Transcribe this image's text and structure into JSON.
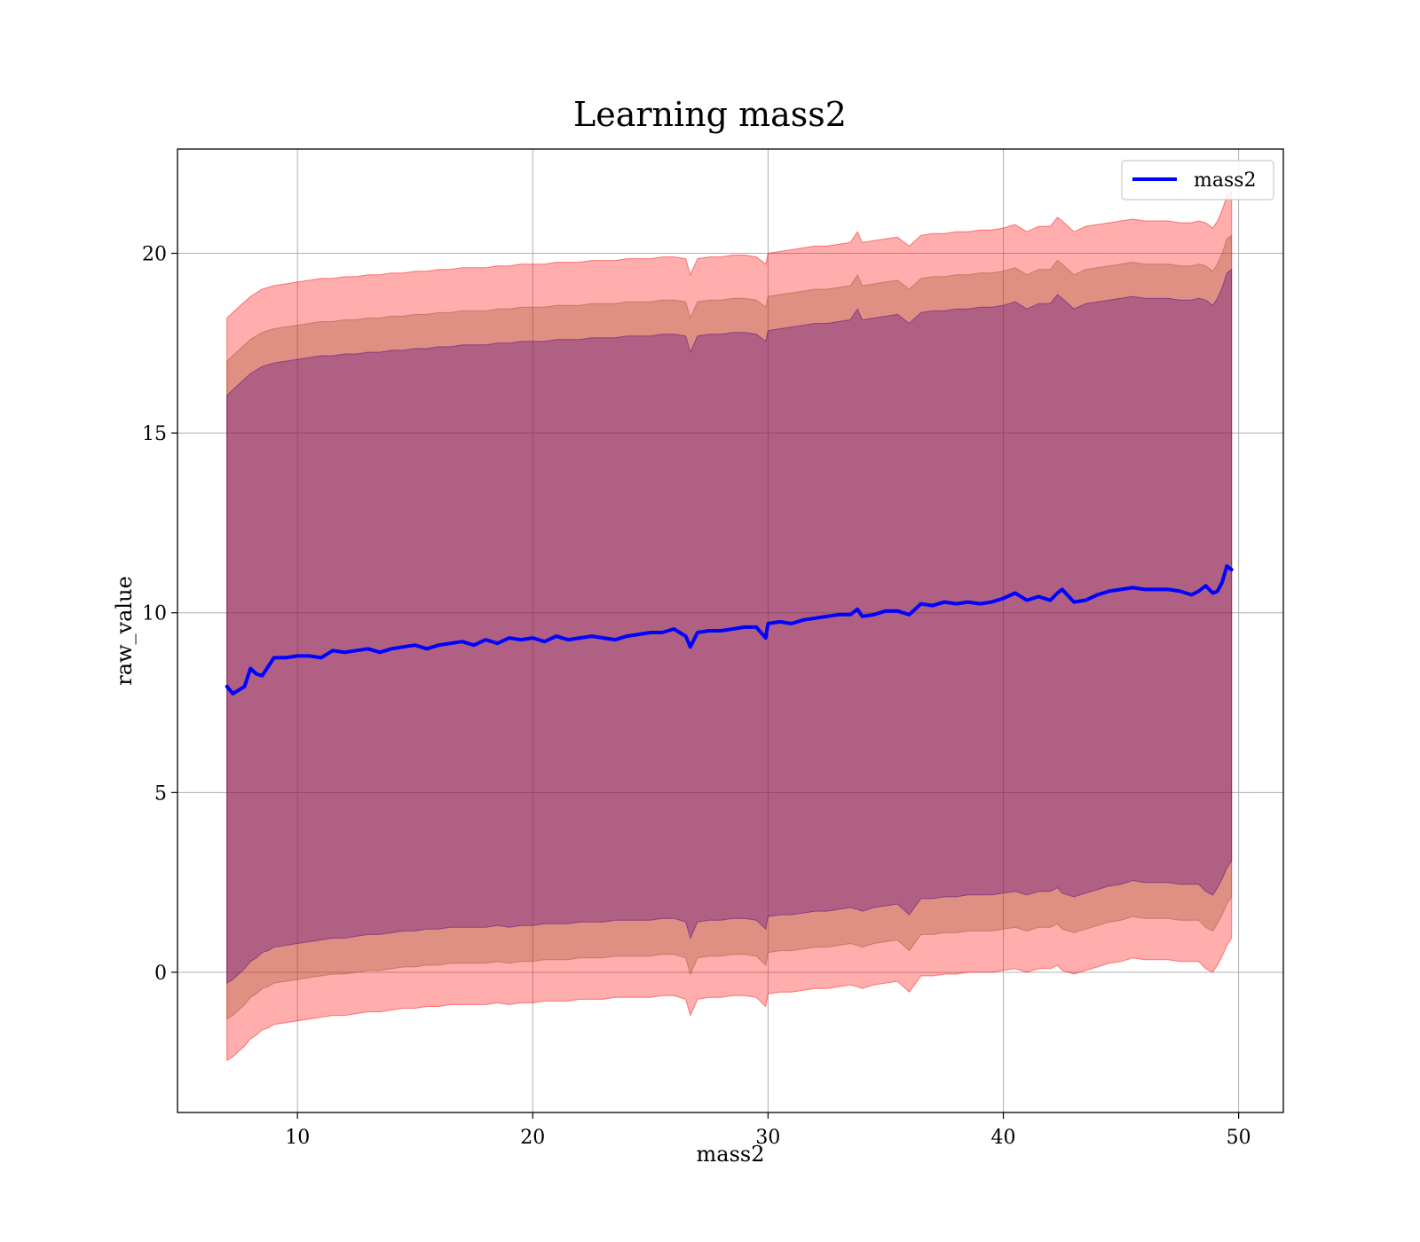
{
  "chart_data": {
    "type": "area",
    "title": "Learning mass2",
    "xlabel": "mass2",
    "ylabel": "raw_value",
    "xlim": [
      4.9,
      51.9
    ],
    "ylim": [
      -3.9,
      22.9
    ],
    "xticks": [
      10,
      20,
      30,
      40,
      50
    ],
    "yticks": [
      0,
      5,
      10,
      15,
      20
    ],
    "grid": true,
    "legend": {
      "placement": "upper right",
      "entries": [
        "mass2"
      ]
    },
    "colors": {
      "line": "#0000ff",
      "band_outer": "#ff0000",
      "band_middle": "#a0522d",
      "band_inner": "#4b0082",
      "grid": "#b0b0b0"
    },
    "band_alphas": {
      "outer": 0.32,
      "middle": 0.32,
      "inner": 0.32
    },
    "x": [
      7.0,
      7.25,
      7.5,
      7.75,
      8.0,
      8.25,
      8.5,
      8.75,
      9.0,
      9.5,
      10.0,
      10.5,
      11.0,
      11.5,
      12.0,
      12.5,
      13.0,
      13.5,
      14.0,
      14.5,
      15.0,
      15.5,
      16.0,
      16.5,
      17.0,
      17.5,
      18.0,
      18.5,
      19.0,
      19.5,
      20.0,
      20.5,
      21.0,
      21.5,
      22.0,
      22.5,
      23.0,
      23.5,
      24.0,
      24.5,
      25.0,
      25.5,
      26.0,
      26.5,
      26.7,
      27.0,
      27.5,
      28.0,
      28.5,
      29.0,
      29.5,
      29.9,
      30.0,
      30.5,
      31.0,
      31.5,
      32.0,
      32.5,
      33.0,
      33.5,
      33.8,
      34.0,
      34.5,
      35.0,
      35.5,
      36.0,
      36.5,
      37.0,
      37.5,
      38.0,
      38.5,
      39.0,
      39.5,
      40.0,
      40.5,
      41.0,
      41.5,
      42.0,
      42.3,
      42.5,
      43.0,
      43.5,
      44.0,
      44.5,
      45.0,
      45.5,
      46.0,
      46.5,
      47.0,
      47.5,
      48.0,
      48.3,
      48.6,
      48.9,
      49.1,
      49.3,
      49.5,
      49.7
    ],
    "series": [
      {
        "name": "mass2",
        "values": [
          7.95,
          7.75,
          7.85,
          7.95,
          8.45,
          8.3,
          8.25,
          8.5,
          8.75,
          8.75,
          8.8,
          8.8,
          8.75,
          8.95,
          8.9,
          8.95,
          9.0,
          8.9,
          9.0,
          9.05,
          9.1,
          9.0,
          9.1,
          9.15,
          9.2,
          9.1,
          9.25,
          9.15,
          9.3,
          9.25,
          9.3,
          9.2,
          9.35,
          9.25,
          9.3,
          9.35,
          9.3,
          9.25,
          9.35,
          9.4,
          9.45,
          9.45,
          9.55,
          9.35,
          9.05,
          9.45,
          9.5,
          9.5,
          9.55,
          9.6,
          9.6,
          9.3,
          9.7,
          9.75,
          9.7,
          9.8,
          9.85,
          9.9,
          9.95,
          9.95,
          10.1,
          9.9,
          9.95,
          10.05,
          10.05,
          9.95,
          10.25,
          10.2,
          10.3,
          10.25,
          10.3,
          10.25,
          10.3,
          10.4,
          10.55,
          10.35,
          10.45,
          10.35,
          10.55,
          10.65,
          10.3,
          10.35,
          10.5,
          10.6,
          10.65,
          10.7,
          10.65,
          10.65,
          10.65,
          10.6,
          10.5,
          10.6,
          10.75,
          10.55,
          10.6,
          10.85,
          11.3,
          11.2
        ]
      }
    ],
    "bands": [
      {
        "lower": [
          -2.45,
          -2.35,
          -2.2,
          -2.05,
          -1.85,
          -1.75,
          -1.6,
          -1.55,
          -1.45,
          -1.4,
          -1.35,
          -1.3,
          -1.25,
          -1.2,
          -1.2,
          -1.15,
          -1.1,
          -1.1,
          -1.05,
          -1.0,
          -1.0,
          -0.95,
          -0.95,
          -0.9,
          -0.9,
          -0.9,
          -0.9,
          -0.85,
          -0.9,
          -0.85,
          -0.85,
          -0.8,
          -0.8,
          -0.8,
          -0.75,
          -0.75,
          -0.75,
          -0.7,
          -0.7,
          -0.7,
          -0.7,
          -0.65,
          -0.65,
          -0.75,
          -1.2,
          -0.75,
          -0.7,
          -0.7,
          -0.65,
          -0.65,
          -0.7,
          -0.95,
          -0.6,
          -0.55,
          -0.55,
          -0.5,
          -0.45,
          -0.45,
          -0.4,
          -0.35,
          -0.4,
          -0.45,
          -0.35,
          -0.3,
          -0.25,
          -0.55,
          -0.1,
          -0.1,
          -0.05,
          -0.05,
          0.0,
          0.0,
          0.0,
          0.05,
          0.1,
          0.0,
          0.1,
          0.1,
          0.2,
          0.05,
          -0.05,
          0.05,
          0.15,
          0.25,
          0.3,
          0.4,
          0.35,
          0.35,
          0.35,
          0.3,
          0.3,
          0.3,
          0.1,
          0.0,
          0.2,
          0.45,
          0.75,
          0.95
        ]
      },
      {
        "lower": [
          -1.3,
          -1.2,
          -1.05,
          -0.9,
          -0.7,
          -0.6,
          -0.45,
          -0.4,
          -0.3,
          -0.25,
          -0.2,
          -0.15,
          -0.1,
          -0.05,
          -0.05,
          0.0,
          0.05,
          0.05,
          0.1,
          0.15,
          0.15,
          0.2,
          0.2,
          0.25,
          0.25,
          0.25,
          0.25,
          0.3,
          0.25,
          0.3,
          0.3,
          0.35,
          0.35,
          0.35,
          0.4,
          0.4,
          0.4,
          0.45,
          0.45,
          0.45,
          0.45,
          0.5,
          0.5,
          0.4,
          -0.05,
          0.4,
          0.45,
          0.45,
          0.5,
          0.5,
          0.45,
          0.2,
          0.55,
          0.6,
          0.6,
          0.65,
          0.7,
          0.7,
          0.75,
          0.8,
          0.75,
          0.7,
          0.8,
          0.85,
          0.9,
          0.6,
          1.05,
          1.05,
          1.1,
          1.1,
          1.15,
          1.15,
          1.15,
          1.2,
          1.25,
          1.15,
          1.25,
          1.25,
          1.35,
          1.2,
          1.1,
          1.2,
          1.3,
          1.4,
          1.45,
          1.55,
          1.5,
          1.5,
          1.5,
          1.45,
          1.45,
          1.45,
          1.25,
          1.15,
          1.35,
          1.6,
          1.9,
          2.1
        ]
      },
      {
        "lower": [
          -0.3,
          -0.2,
          -0.05,
          0.1,
          0.3,
          0.4,
          0.55,
          0.6,
          0.7,
          0.75,
          0.8,
          0.85,
          0.9,
          0.95,
          0.95,
          1.0,
          1.05,
          1.05,
          1.1,
          1.15,
          1.15,
          1.2,
          1.2,
          1.25,
          1.25,
          1.25,
          1.25,
          1.3,
          1.25,
          1.3,
          1.3,
          1.35,
          1.35,
          1.35,
          1.4,
          1.4,
          1.4,
          1.45,
          1.45,
          1.45,
          1.45,
          1.5,
          1.5,
          1.4,
          0.95,
          1.4,
          1.45,
          1.45,
          1.5,
          1.5,
          1.45,
          1.2,
          1.55,
          1.6,
          1.6,
          1.65,
          1.7,
          1.7,
          1.75,
          1.8,
          1.75,
          1.7,
          1.8,
          1.85,
          1.9,
          1.6,
          2.05,
          2.05,
          2.1,
          2.1,
          2.15,
          2.15,
          2.15,
          2.2,
          2.25,
          2.15,
          2.25,
          2.25,
          2.35,
          2.2,
          2.1,
          2.2,
          2.3,
          2.4,
          2.45,
          2.55,
          2.5,
          2.5,
          2.5,
          2.45,
          2.45,
          2.45,
          2.25,
          2.15,
          2.35,
          2.6,
          2.9,
          3.1
        ]
      }
    ],
    "upper_bands": [
      {
        "upper": [
          18.2,
          18.35,
          18.5,
          18.65,
          18.8,
          18.9,
          19.0,
          19.05,
          19.1,
          19.15,
          19.2,
          19.25,
          19.3,
          19.3,
          19.35,
          19.35,
          19.4,
          19.4,
          19.45,
          19.45,
          19.5,
          19.5,
          19.55,
          19.55,
          19.6,
          19.6,
          19.6,
          19.65,
          19.65,
          19.7,
          19.7,
          19.7,
          19.75,
          19.75,
          19.75,
          19.8,
          19.8,
          19.8,
          19.85,
          19.85,
          19.85,
          19.9,
          19.9,
          19.85,
          19.4,
          19.85,
          19.9,
          19.9,
          19.95,
          19.95,
          19.9,
          19.7,
          20.0,
          20.05,
          20.1,
          20.15,
          20.2,
          20.2,
          20.25,
          20.3,
          20.6,
          20.3,
          20.35,
          20.4,
          20.45,
          20.2,
          20.5,
          20.55,
          20.55,
          20.6,
          20.6,
          20.65,
          20.65,
          20.7,
          20.8,
          20.6,
          20.75,
          20.75,
          21.0,
          20.9,
          20.6,
          20.75,
          20.8,
          20.85,
          20.9,
          20.95,
          20.9,
          20.9,
          20.9,
          20.85,
          20.85,
          20.9,
          20.85,
          20.7,
          20.9,
          21.2,
          21.6,
          21.7
        ]
      },
      {
        "upper": [
          17.0,
          17.15,
          17.3,
          17.45,
          17.6,
          17.7,
          17.8,
          17.85,
          17.9,
          17.95,
          18.0,
          18.05,
          18.1,
          18.1,
          18.15,
          18.15,
          18.2,
          18.2,
          18.25,
          18.25,
          18.3,
          18.3,
          18.35,
          18.35,
          18.4,
          18.4,
          18.4,
          18.45,
          18.45,
          18.5,
          18.5,
          18.5,
          18.55,
          18.55,
          18.55,
          18.6,
          18.6,
          18.6,
          18.65,
          18.65,
          18.65,
          18.7,
          18.7,
          18.65,
          18.2,
          18.65,
          18.7,
          18.7,
          18.75,
          18.75,
          18.7,
          18.5,
          18.8,
          18.85,
          18.9,
          18.95,
          19.0,
          19.0,
          19.05,
          19.1,
          19.4,
          19.1,
          19.15,
          19.2,
          19.25,
          19.0,
          19.3,
          19.35,
          19.35,
          19.4,
          19.4,
          19.45,
          19.45,
          19.5,
          19.6,
          19.4,
          19.55,
          19.55,
          19.8,
          19.7,
          19.4,
          19.55,
          19.6,
          19.65,
          19.7,
          19.75,
          19.7,
          19.7,
          19.7,
          19.65,
          19.65,
          19.7,
          19.65,
          19.5,
          19.7,
          20.0,
          20.4,
          20.5
        ]
      },
      {
        "upper": [
          16.05,
          16.2,
          16.35,
          16.5,
          16.65,
          16.75,
          16.85,
          16.9,
          16.95,
          17.0,
          17.05,
          17.1,
          17.15,
          17.15,
          17.2,
          17.2,
          17.25,
          17.25,
          17.3,
          17.3,
          17.35,
          17.35,
          17.4,
          17.4,
          17.45,
          17.45,
          17.45,
          17.5,
          17.5,
          17.55,
          17.55,
          17.55,
          17.6,
          17.6,
          17.6,
          17.65,
          17.65,
          17.65,
          17.7,
          17.7,
          17.7,
          17.75,
          17.75,
          17.7,
          17.25,
          17.7,
          17.75,
          17.75,
          17.8,
          17.8,
          17.75,
          17.55,
          17.85,
          17.9,
          17.95,
          18.0,
          18.05,
          18.05,
          18.1,
          18.15,
          18.45,
          18.15,
          18.2,
          18.25,
          18.3,
          18.05,
          18.35,
          18.4,
          18.4,
          18.45,
          18.45,
          18.5,
          18.5,
          18.55,
          18.65,
          18.45,
          18.6,
          18.6,
          18.85,
          18.75,
          18.45,
          18.6,
          18.65,
          18.7,
          18.75,
          18.8,
          18.75,
          18.75,
          18.75,
          18.7,
          18.7,
          18.75,
          18.7,
          18.55,
          18.75,
          19.05,
          19.45,
          19.55
        ]
      }
    ]
  }
}
